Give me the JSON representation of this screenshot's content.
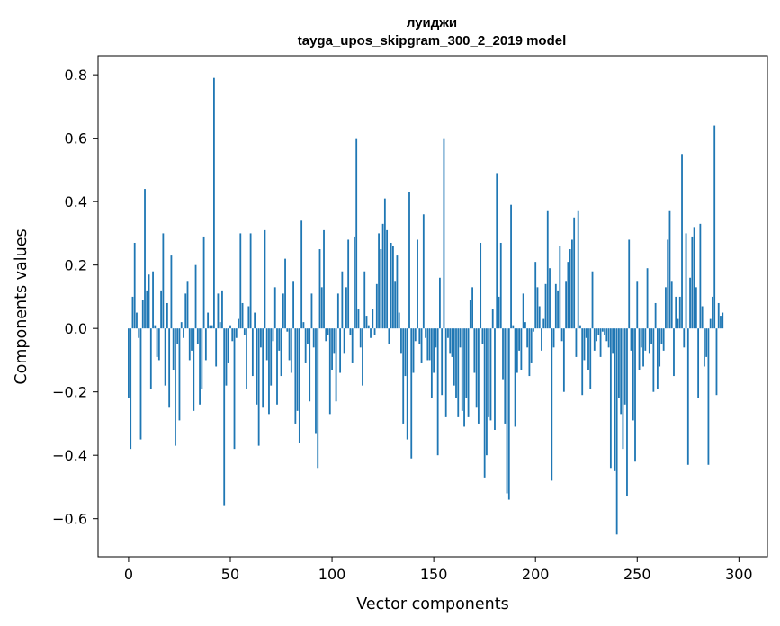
{
  "chart_data": {
    "type": "bar",
    "title_line1": "луиджи",
    "title_line2": "tayga_upos_skipgram_300_2_2019 model",
    "xlabel": "Vector components",
    "ylabel": "Components values",
    "xlim": [
      -15,
      314
    ],
    "ylim": [
      -0.72,
      0.86
    ],
    "xticks": [
      0,
      50,
      100,
      150,
      200,
      250,
      300
    ],
    "xtick_labels": [
      "0",
      "50",
      "100",
      "150",
      "200",
      "250",
      "300"
    ],
    "yticks": [
      -0.6,
      -0.4,
      -0.2,
      0.0,
      0.2,
      0.4,
      0.6,
      0.8
    ],
    "ytick_labels": [
      "−0.6",
      "−0.4",
      "−0.2",
      "0.0",
      "0.2",
      "0.4",
      "0.6",
      "0.8"
    ],
    "bar_color": "#1f77b4",
    "grid": false,
    "values": [
      -0.22,
      -0.38,
      0.1,
      0.27,
      0.05,
      -0.03,
      -0.35,
      0.09,
      0.44,
      0.12,
      0.17,
      -0.19,
      0.18,
      0.01,
      -0.09,
      -0.1,
      0.12,
      0.3,
      -0.18,
      0.08,
      -0.25,
      0.23,
      -0.13,
      -0.37,
      -0.05,
      -0.29,
      0.02,
      -0.03,
      0.11,
      0.15,
      -0.1,
      -0.07,
      -0.26,
      0.2,
      -0.05,
      -0.24,
      -0.19,
      0.29,
      -0.1,
      0.05,
      0.01,
      0.01,
      0.79,
      -0.12,
      0.11,
      0.02,
      0.12,
      -0.56,
      -0.18,
      -0.11,
      0.01,
      -0.04,
      -0.38,
      -0.03,
      0.03,
      0.3,
      0.08,
      -0.02,
      -0.19,
      0.07,
      0.3,
      -0.15,
      0.05,
      -0.24,
      -0.37,
      -0.06,
      -0.25,
      0.31,
      -0.1,
      -0.27,
      -0.18,
      -0.04,
      0.13,
      -0.24,
      -0.07,
      -0.15,
      0.11,
      0.22,
      -0.01,
      -0.1,
      -0.14,
      0.15,
      -0.3,
      -0.26,
      -0.36,
      0.34,
      0.02,
      -0.11,
      -0.05,
      -0.23,
      0.11,
      -0.06,
      -0.33,
      -0.44,
      0.25,
      0.13,
      0.31,
      -0.04,
      -0.02,
      -0.27,
      -0.13,
      -0.08,
      -0.23,
      0.11,
      -0.14,
      0.18,
      -0.08,
      0.13,
      0.28,
      -0.02,
      -0.11,
      0.29,
      0.6,
      0.06,
      -0.06,
      -0.18,
      0.18,
      0.04,
      0.01,
      -0.03,
      0.06,
      -0.02,
      0.14,
      0.3,
      0.25,
      0.33,
      0.41,
      0.31,
      -0.05,
      0.27,
      0.26,
      0.15,
      0.23,
      0.05,
      -0.08,
      -0.3,
      -0.15,
      -0.35,
      0.43,
      -0.41,
      -0.14,
      -0.04,
      0.28,
      -0.05,
      -0.11,
      0.36,
      -0.03,
      -0.1,
      -0.1,
      -0.22,
      -0.14,
      -0.06,
      -0.4,
      0.16,
      -0.21,
      0.6,
      -0.28,
      -0.03,
      -0.08,
      -0.09,
      -0.18,
      -0.22,
      -0.28,
      -0.06,
      -0.26,
      -0.31,
      -0.22,
      -0.28,
      0.09,
      0.13,
      -0.14,
      -0.25,
      -0.3,
      0.27,
      -0.05,
      -0.47,
      -0.4,
      -0.28,
      -0.29,
      0.06,
      -0.32,
      0.49,
      0.1,
      0.27,
      -0.16,
      -0.3,
      -0.52,
      -0.54,
      0.39,
      0.01,
      -0.31,
      -0.14,
      -0.07,
      -0.13,
      0.11,
      0.02,
      -0.06,
      -0.15,
      -0.11,
      -0.01,
      0.21,
      0.13,
      0.07,
      -0.07,
      0.03,
      0.14,
      0.37,
      0.19,
      -0.48,
      -0.06,
      0.14,
      0.12,
      0.26,
      -0.04,
      -0.2,
      0.15,
      0.21,
      0.25,
      0.28,
      0.35,
      -0.09,
      0.37,
      0.01,
      -0.21,
      -0.1,
      -0.03,
      -0.13,
      -0.19,
      0.18,
      -0.07,
      -0.04,
      -0.02,
      -0.09,
      -0.01,
      -0.02,
      -0.04,
      -0.06,
      -0.44,
      -0.08,
      -0.45,
      -0.65,
      -0.22,
      -0.27,
      -0.38,
      -0.24,
      -0.53,
      0.28,
      -0.07,
      -0.29,
      -0.42,
      0.15,
      -0.13,
      -0.06,
      -0.12,
      -0.07,
      0.19,
      -0.08,
      -0.05,
      -0.2,
      0.08,
      -0.19,
      -0.12,
      -0.05,
      -0.07,
      0.13,
      0.28,
      0.37,
      0.15,
      -0.15,
      0.1,
      0.03,
      0.1,
      0.55,
      -0.06,
      0.3,
      -0.43,
      0.16,
      0.29,
      0.32,
      0.13,
      -0.22,
      0.33,
      0.07,
      -0.12,
      -0.09,
      -0.43,
      0.03,
      0.1,
      0.64,
      -0.21,
      0.08,
      0.04,
      0.05
    ]
  }
}
